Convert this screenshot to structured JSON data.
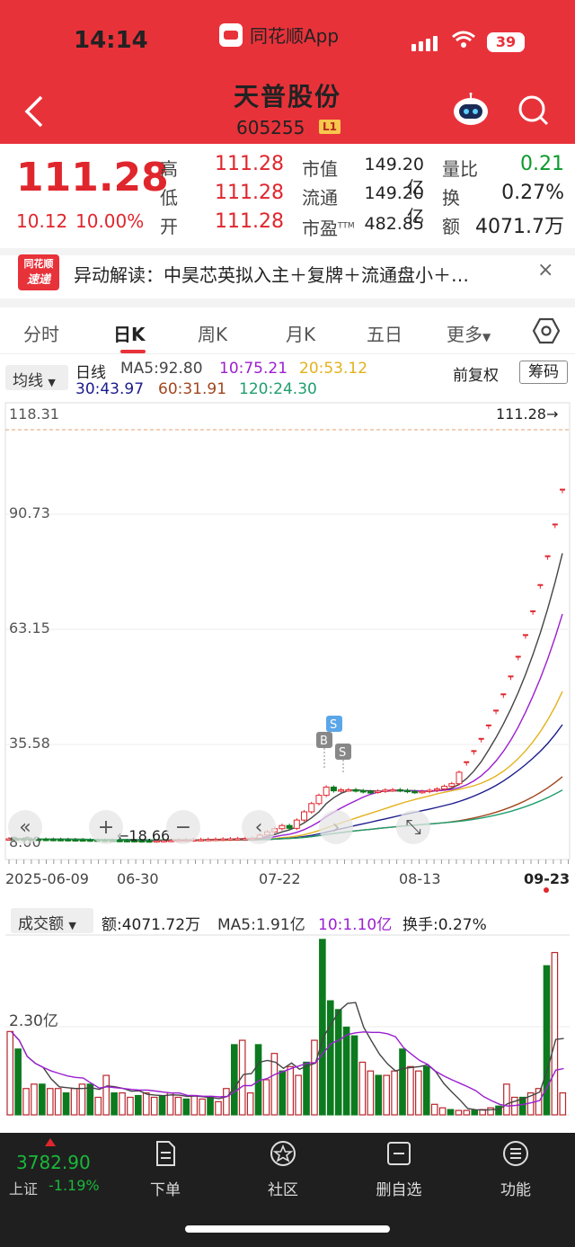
{
  "status_bar": {
    "time": "14:14",
    "app": "同花顺App",
    "battery": "39"
  },
  "header": {
    "title": "天普股份",
    "code": "605255",
    "board": "L1"
  },
  "quote": {
    "price": "111.28",
    "change": "10.12",
    "change_pct": "10.00%",
    "high_label": "高",
    "high": "111.28",
    "low_label": "低",
    "low": "111.28",
    "open_label": "开",
    "open": "111.28",
    "mcap_label": "市值",
    "mcap": "149.20亿",
    "float_label": "流通",
    "float": "149.20亿",
    "pe_label": "市盈",
    "pe_sup": "TTM",
    "pe": "482.85",
    "vr_label": "量比",
    "vr": "0.21",
    "turn_label": "换",
    "turn": "0.27%",
    "amt_label": "额",
    "amt": "4071.7万"
  },
  "news": {
    "logo_top": "同花顺",
    "logo_bottom": "速递",
    "text": "异动解读：中昊芯英拟入主＋复牌＋流通盘小＋…",
    "close": "×"
  },
  "tabs": [
    "分时",
    "日K",
    "周K",
    "月K",
    "五日",
    "更多"
  ],
  "indicator_bar": {
    "dropdown": "均线",
    "line_label": "日线",
    "ma5": "MA5:92.80",
    "ma10": "10:75.21",
    "ma20": "20:53.12",
    "ma30": "30:43.97",
    "ma60": "60:31.91",
    "ma120": "120:24.30",
    "adjust": "前复权",
    "chips": "筹码"
  },
  "kchart": {
    "y_labels": [
      "118.31",
      "90.73",
      "63.15",
      "35.58",
      "8.00"
    ],
    "last_price_label": "111.28→",
    "low_marker": "←18.66",
    "x_labels": [
      "2025-06-09",
      "06-30",
      "07-22",
      "08-13",
      "09-23"
    ],
    "markers": [
      "S",
      "B",
      "S"
    ]
  },
  "volume": {
    "dropdown": "成交额",
    "amount": "额:4071.72万",
    "ma5": "MA5:1.91亿",
    "ma10": "10:1.10亿",
    "turnover": "换手:0.27%",
    "y_label": "2.30亿"
  },
  "bottom_nav": {
    "index_value": "3782.90",
    "index_name": "上证",
    "index_change": "-1.19%",
    "items": [
      "下单",
      "社区",
      "删自选",
      "功能"
    ]
  },
  "colors": {
    "brand": "#e8323a",
    "up": "#e0262d",
    "down": "#0c7a1f",
    "ma5": "#444444",
    "ma10": "#9b1fd0",
    "ma20": "#e3b21c",
    "ma30": "#1c1c8c",
    "ma60": "#a0461e",
    "ma120": "#1f9e6e"
  }
}
